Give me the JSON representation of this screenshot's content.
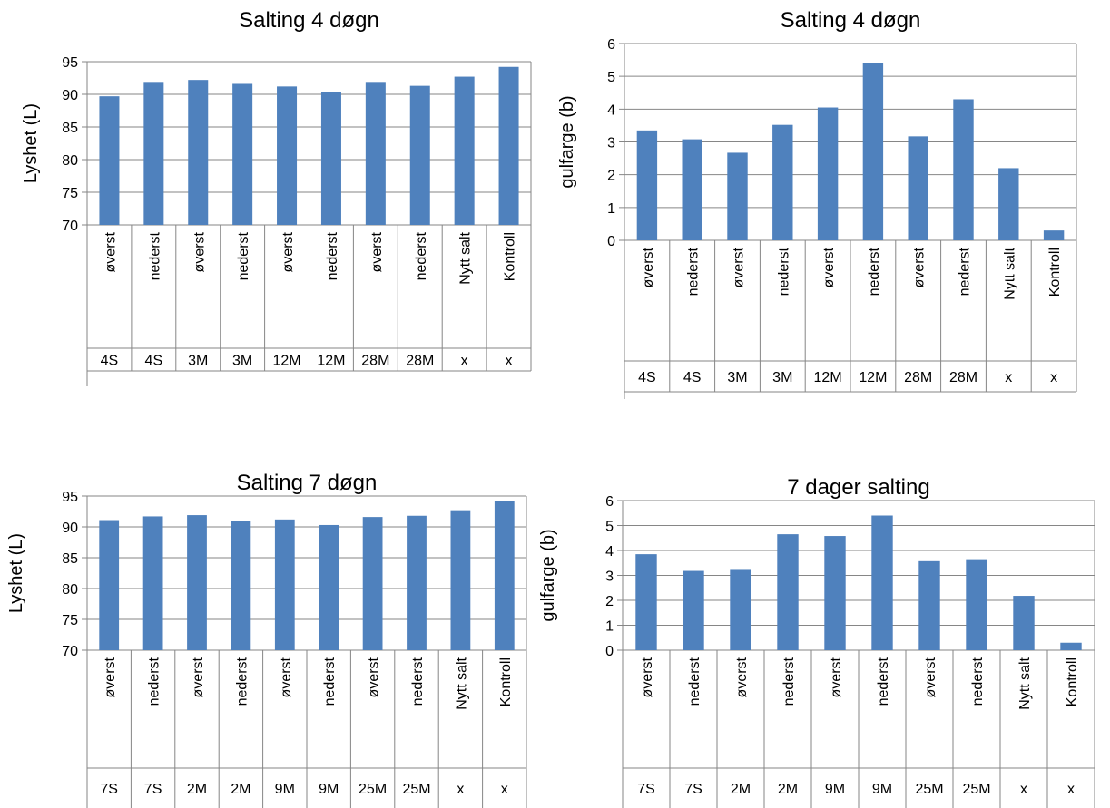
{
  "chart_data": [
    {
      "type": "bar",
      "title": "Salting 4 døgn",
      "ylabel": "Lyshet (L)",
      "ylim": [
        70,
        95
      ],
      "yticks": [
        70,
        75,
        80,
        85,
        90,
        95
      ],
      "grid": true,
      "bar_color": "#4F81BD",
      "categories": [
        "øverst",
        "nederst",
        "øverst",
        "nederst",
        "øverst",
        "nederst",
        "øverst",
        "nederst",
        "Nytt salt",
        "Kontroll"
      ],
      "groups": [
        "4S",
        "4S",
        "3M",
        "3M",
        "12M",
        "12M",
        "28M",
        "28M",
        "x",
        "x"
      ],
      "values": [
        89.7,
        91.9,
        92.2,
        91.6,
        91.2,
        90.4,
        91.9,
        91.3,
        92.7,
        94.2
      ]
    },
    {
      "type": "bar",
      "title": "Salting 4 døgn",
      "ylabel": "gulfarge (b)",
      "ylim": [
        0,
        6
      ],
      "yticks": [
        0,
        1,
        2,
        3,
        4,
        5,
        6
      ],
      "grid": true,
      "bar_color": "#4F81BD",
      "categories": [
        "øverst",
        "nederst",
        "øverst",
        "nederst",
        "øverst",
        "nederst",
        "øverst",
        "nederst",
        "Nytt salt",
        "Kontroll"
      ],
      "groups": [
        "4S",
        "4S",
        "3M",
        "3M",
        "12M",
        "12M",
        "28M",
        "28M",
        "x",
        "x"
      ],
      "values": [
        3.35,
        3.08,
        2.67,
        3.52,
        4.05,
        5.4,
        3.17,
        4.3,
        2.2,
        0.3
      ]
    },
    {
      "type": "bar",
      "title": "Salting 7 døgn",
      "ylabel": "Lyshet (L)",
      "ylim": [
        70,
        95
      ],
      "yticks": [
        70,
        75,
        80,
        85,
        90,
        95
      ],
      "grid": true,
      "bar_color": "#4F81BD",
      "categories": [
        "øverst",
        "nederst",
        "øverst",
        "nederst",
        "øverst",
        "nederst",
        "øverst",
        "nederst",
        "Nytt salt",
        "Kontroll"
      ],
      "groups": [
        "7S",
        "7S",
        "2M",
        "2M",
        "9M",
        "9M",
        "25M",
        "25M",
        "x",
        "x"
      ],
      "values": [
        91.1,
        91.7,
        91.9,
        90.9,
        91.2,
        90.3,
        91.6,
        91.8,
        92.7,
        94.2
      ]
    },
    {
      "type": "bar",
      "title": "7 dager salting",
      "ylabel": "gulfarge (b)",
      "ylim": [
        0,
        6
      ],
      "yticks": [
        0,
        1,
        2,
        3,
        4,
        5,
        6
      ],
      "grid": true,
      "bar_color": "#4F81BD",
      "categories": [
        "øverst",
        "nederst",
        "øverst",
        "nederst",
        "øverst",
        "nederst",
        "øverst",
        "nederst",
        "Nytt salt",
        "Kontroll"
      ],
      "groups": [
        "7S",
        "7S",
        "2M",
        "2M",
        "9M",
        "9M",
        "25M",
        "25M",
        "x",
        "x"
      ],
      "values": [
        3.85,
        3.18,
        3.22,
        4.65,
        4.58,
        5.4,
        3.57,
        3.65,
        2.18,
        0.3
      ]
    }
  ]
}
